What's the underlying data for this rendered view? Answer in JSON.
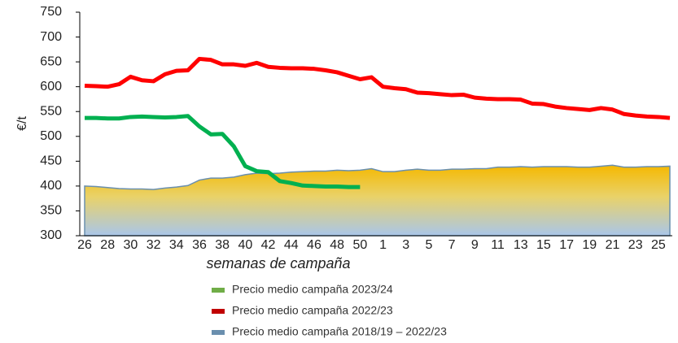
{
  "chart_data": {
    "type": "line",
    "x_label": "semanas de campaña",
    "y_label": "€/t",
    "categories": [
      "26",
      null,
      "28",
      null,
      "30",
      null,
      "32",
      null,
      "34",
      null,
      "36",
      null,
      "38",
      null,
      "40",
      null,
      "42",
      null,
      "44",
      null,
      "46",
      null,
      "48",
      null,
      "50",
      null,
      "1",
      null,
      "3",
      null,
      "5",
      null,
      "7",
      null,
      "9",
      null,
      "11",
      null,
      "13",
      null,
      "15",
      null,
      "17",
      null,
      "19",
      null,
      "21",
      null,
      "23",
      null,
      "25",
      null
    ],
    "series": [
      {
        "name": "Precio medio campaña 2023/24",
        "color": "#00b050",
        "legend_color": "#70ad47",
        "kind": "line",
        "values": [
          537,
          537,
          536,
          536,
          539,
          540,
          539,
          538,
          539,
          541,
          520,
          504,
          505,
          480,
          440,
          430,
          428,
          410,
          406,
          401,
          400,
          399,
          399,
          398,
          398,
          null,
          null,
          null,
          null,
          null,
          null,
          null,
          null,
          null,
          null,
          null,
          null,
          null,
          null,
          null,
          null,
          null,
          null,
          null,
          null,
          null,
          null,
          null,
          null,
          null,
          null,
          null
        ]
      },
      {
        "name": "Precio medio campaña 2022/23",
        "color": "#ff0000",
        "legend_color": "#c00000",
        "kind": "line",
        "values": [
          602,
          601,
          600,
          605,
          620,
          613,
          611,
          625,
          632,
          633,
          656,
          654,
          645,
          645,
          642,
          648,
          640,
          638,
          637,
          637,
          636,
          633,
          629,
          622,
          615,
          619,
          600,
          597,
          595,
          588,
          587,
          585,
          583,
          584,
          578,
          576,
          575,
          575,
          574,
          566,
          565,
          560,
          557,
          555,
          553,
          557,
          554,
          545,
          542,
          540,
          539,
          537
        ]
      },
      {
        "name": "Precio medio campaña 2018/19 – 2022/23",
        "color": "#6a8fae",
        "legend_color": "#6a8fae",
        "kind": "area",
        "values": [
          400,
          399,
          397,
          395,
          394,
          394,
          393,
          396,
          398,
          401,
          412,
          416,
          416,
          418,
          423,
          426,
          425,
          426,
          428,
          429,
          430,
          430,
          432,
          431,
          432,
          435,
          429,
          429,
          432,
          434,
          432,
          432,
          434,
          434,
          435,
          435,
          438,
          438,
          439,
          438,
          439,
          439,
          439,
          438,
          438,
          440,
          442,
          438,
          438,
          439,
          439,
          440
        ]
      }
    ],
    "ylim": [
      300,
      750
    ],
    "yticks": [
      300,
      350,
      400,
      450,
      500,
      550,
      600,
      650,
      700,
      750
    ],
    "grid": false,
    "legend": "bottom"
  }
}
